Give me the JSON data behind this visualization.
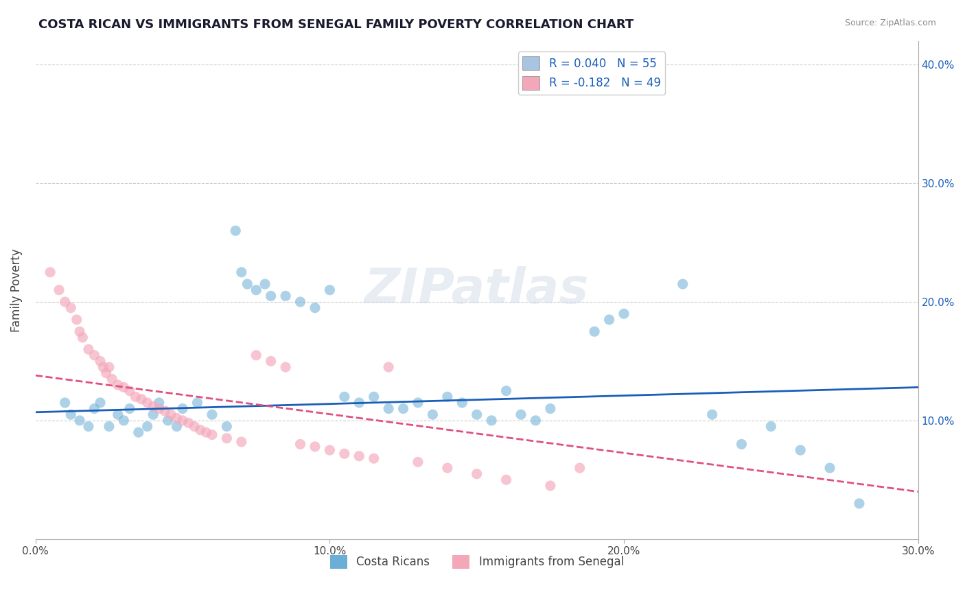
{
  "title": "COSTA RICAN VS IMMIGRANTS FROM SENEGAL FAMILY POVERTY CORRELATION CHART",
  "source": "Source: ZipAtlas.com",
  "xlabel_ticks": [
    "0.0%",
    "10.0%",
    "20.0%",
    "30.0%"
  ],
  "ylabel": "Family Poverty",
  "ylabel_ticks_right": [
    "10.0%",
    "20.0%",
    "30.0%",
    "40.0%"
  ],
  "xlim": [
    0.0,
    0.3
  ],
  "ylim": [
    0.0,
    0.42
  ],
  "blue_scatter": [
    [
      0.01,
      0.115
    ],
    [
      0.012,
      0.105
    ],
    [
      0.015,
      0.1
    ],
    [
      0.018,
      0.095
    ],
    [
      0.02,
      0.11
    ],
    [
      0.022,
      0.115
    ],
    [
      0.025,
      0.095
    ],
    [
      0.028,
      0.105
    ],
    [
      0.03,
      0.1
    ],
    [
      0.032,
      0.11
    ],
    [
      0.035,
      0.09
    ],
    [
      0.038,
      0.095
    ],
    [
      0.04,
      0.105
    ],
    [
      0.042,
      0.115
    ],
    [
      0.045,
      0.1
    ],
    [
      0.048,
      0.095
    ],
    [
      0.05,
      0.11
    ],
    [
      0.055,
      0.115
    ],
    [
      0.06,
      0.105
    ],
    [
      0.065,
      0.095
    ],
    [
      0.068,
      0.26
    ],
    [
      0.07,
      0.225
    ],
    [
      0.072,
      0.215
    ],
    [
      0.075,
      0.21
    ],
    [
      0.078,
      0.215
    ],
    [
      0.08,
      0.205
    ],
    [
      0.085,
      0.205
    ],
    [
      0.09,
      0.2
    ],
    [
      0.095,
      0.195
    ],
    [
      0.1,
      0.21
    ],
    [
      0.105,
      0.12
    ],
    [
      0.11,
      0.115
    ],
    [
      0.115,
      0.12
    ],
    [
      0.12,
      0.11
    ],
    [
      0.125,
      0.11
    ],
    [
      0.13,
      0.115
    ],
    [
      0.135,
      0.105
    ],
    [
      0.14,
      0.12
    ],
    [
      0.145,
      0.115
    ],
    [
      0.15,
      0.105
    ],
    [
      0.155,
      0.1
    ],
    [
      0.16,
      0.125
    ],
    [
      0.165,
      0.105
    ],
    [
      0.17,
      0.1
    ],
    [
      0.175,
      0.11
    ],
    [
      0.19,
      0.175
    ],
    [
      0.195,
      0.185
    ],
    [
      0.2,
      0.19
    ],
    [
      0.22,
      0.215
    ],
    [
      0.23,
      0.105
    ],
    [
      0.24,
      0.08
    ],
    [
      0.25,
      0.095
    ],
    [
      0.26,
      0.075
    ],
    [
      0.27,
      0.06
    ],
    [
      0.28,
      0.03
    ]
  ],
  "pink_scatter": [
    [
      0.005,
      0.225
    ],
    [
      0.008,
      0.21
    ],
    [
      0.01,
      0.2
    ],
    [
      0.012,
      0.195
    ],
    [
      0.014,
      0.185
    ],
    [
      0.015,
      0.175
    ],
    [
      0.016,
      0.17
    ],
    [
      0.018,
      0.16
    ],
    [
      0.02,
      0.155
    ],
    [
      0.022,
      0.15
    ],
    [
      0.023,
      0.145
    ],
    [
      0.024,
      0.14
    ],
    [
      0.025,
      0.145
    ],
    [
      0.026,
      0.135
    ],
    [
      0.028,
      0.13
    ],
    [
      0.03,
      0.128
    ],
    [
      0.032,
      0.125
    ],
    [
      0.034,
      0.12
    ],
    [
      0.036,
      0.118
    ],
    [
      0.038,
      0.115
    ],
    [
      0.04,
      0.112
    ],
    [
      0.042,
      0.11
    ],
    [
      0.044,
      0.108
    ],
    [
      0.046,
      0.105
    ],
    [
      0.048,
      0.102
    ],
    [
      0.05,
      0.1
    ],
    [
      0.052,
      0.098
    ],
    [
      0.054,
      0.095
    ],
    [
      0.056,
      0.092
    ],
    [
      0.058,
      0.09
    ],
    [
      0.06,
      0.088
    ],
    [
      0.065,
      0.085
    ],
    [
      0.07,
      0.082
    ],
    [
      0.075,
      0.155
    ],
    [
      0.08,
      0.15
    ],
    [
      0.085,
      0.145
    ],
    [
      0.09,
      0.08
    ],
    [
      0.095,
      0.078
    ],
    [
      0.1,
      0.075
    ],
    [
      0.105,
      0.072
    ],
    [
      0.11,
      0.07
    ],
    [
      0.115,
      0.068
    ],
    [
      0.12,
      0.145
    ],
    [
      0.13,
      0.065
    ],
    [
      0.14,
      0.06
    ],
    [
      0.15,
      0.055
    ],
    [
      0.16,
      0.05
    ],
    [
      0.175,
      0.045
    ],
    [
      0.185,
      0.06
    ]
  ],
  "blue_line": [
    [
      0.0,
      0.107
    ],
    [
      0.3,
      0.128
    ]
  ],
  "pink_line": [
    [
      0.0,
      0.138
    ],
    [
      0.3,
      0.04
    ]
  ],
  "grid_color": "#cccccc",
  "blue_color": "#6baed6",
  "pink_color": "#f4a7b9",
  "blue_line_color": "#1a5eb8",
  "pink_line_color": "#e05080",
  "watermark": "ZIPatlas",
  "watermark_color": "#d0dce8",
  "background_color": "#ffffff",
  "title_fontsize": 13,
  "figsize": [
    14.06,
    8.92
  ]
}
